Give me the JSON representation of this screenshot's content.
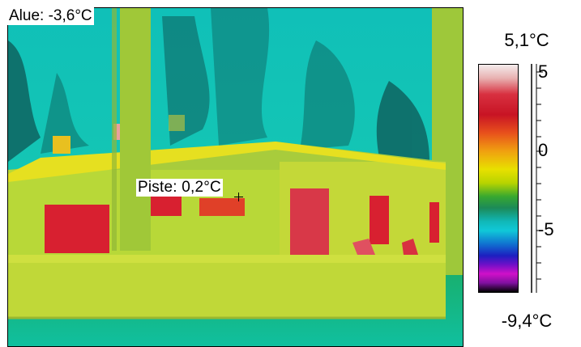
{
  "thermal_image": {
    "area_reading": "Alue: -3,6°C",
    "spot_reading": "Piste: 0,2°C"
  },
  "scale": {
    "max_label": "5,1°C",
    "min_label": "-9,4°C",
    "tick_labels": [
      "5",
      "0",
      "-5"
    ]
  },
  "colors": {
    "sky": "#18c8b0",
    "building": "#c8e030",
    "hot": "#d82030",
    "tree": "#106868"
  }
}
